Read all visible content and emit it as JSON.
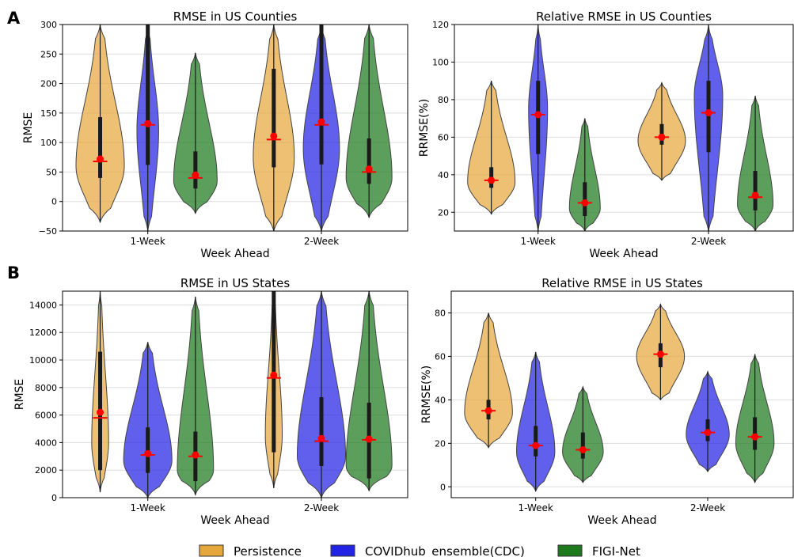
{
  "panel_labels": [
    "A",
    "B"
  ],
  "legend": [
    {
      "label": "Persistence",
      "color": "#e6a73e"
    },
    {
      "label": "COVIDhub_ensemble(CDC)",
      "color": "#2323e6"
    },
    {
      "label": "FIGI-Net",
      "color": "#1d7a1d"
    }
  ],
  "colors": {
    "Persistence": "#e6a73e",
    "COVIDhub_ensemble(CDC)": "#2323e6",
    "FIGI-Net": "#1d7a1d",
    "mean_marker": "#ff0000",
    "box": "#1a1a1a"
  },
  "chart_data": [
    {
      "type": "violin",
      "title": "RMSE in US Counties",
      "xlabel": "Week Ahead",
      "ylabel": "RMSE",
      "categories": [
        "1-Week",
        "2-Week"
      ],
      "ylim": [
        -50,
        300
      ],
      "yticks": [
        -50,
        0,
        50,
        100,
        150,
        200,
        250,
        300
      ],
      "grid": true,
      "series": [
        {
          "name": "Persistence",
          "stats": [
            {
              "min": -35,
              "max": 300,
              "q1": 40,
              "median": 68,
              "q3": 143,
              "mean": 72,
              "mode": 60,
              "width": 1.0
            },
            {
              "min": -50,
              "max": 300,
              "q1": 58,
              "median": 105,
              "q3": 225,
              "mean": 111,
              "mode": 75,
              "width": 0.85
            }
          ]
        },
        {
          "name": "COVIDhub_ensemble(CDC)",
          "stats": [
            {
              "min": -50,
              "max": 300,
              "q1": 62,
              "median": 130,
              "q3": 300,
              "mean": 132,
              "mode": 120,
              "width": 0.45
            },
            {
              "min": -50,
              "max": 300,
              "q1": 63,
              "median": 130,
              "q3": 300,
              "mean": 135,
              "mode": 90,
              "width": 0.75
            }
          ]
        },
        {
          "name": "FIGI-Net",
          "stats": [
            {
              "min": -20,
              "max": 252,
              "q1": 22,
              "median": 40,
              "q3": 85,
              "mean": 45,
              "mode": 35,
              "width": 0.9
            },
            {
              "min": -27,
              "max": 300,
              "q1": 30,
              "median": 50,
              "q3": 107,
              "mean": 55,
              "mode": 40,
              "width": 0.95
            }
          ]
        }
      ]
    },
    {
      "type": "violin",
      "title": "Relative RMSE in US Counties",
      "xlabel": "Week Ahead",
      "ylabel": "RRMSE(%)",
      "categories": [
        "1-Week",
        "2-Week"
      ],
      "ylim": [
        10,
        120
      ],
      "yticks": [
        20,
        40,
        60,
        80,
        100,
        120
      ],
      "grid": true,
      "series": [
        {
          "name": "Persistence",
          "stats": [
            {
              "min": 19,
              "max": 90,
              "q1": 33,
              "median": 37,
              "q3": 44,
              "mean": 37,
              "mode": 36,
              "width": 1.0
            },
            {
              "min": 37,
              "max": 89,
              "q1": 56,
              "median": 60,
              "q3": 67,
              "mean": 60,
              "mode": 58,
              "width": 1.0
            }
          ]
        },
        {
          "name": "COVIDhub_ensemble(CDC)",
          "stats": [
            {
              "min": 10,
              "max": 120,
              "q1": 51,
              "median": 72,
              "q3": 90,
              "mean": 72,
              "mode": 75,
              "width": 0.4
            },
            {
              "min": 10,
              "max": 120,
              "q1": 52,
              "median": 73,
              "q3": 90,
              "mean": 73,
              "mode": 82,
              "width": 0.6
            }
          ]
        },
        {
          "name": "FIGI-Net",
          "stats": [
            {
              "min": 10,
              "max": 70,
              "q1": 18,
              "median": 25,
              "q3": 36,
              "mean": 25,
              "mode": 22,
              "width": 0.65
            },
            {
              "min": 10,
              "max": 82,
              "q1": 21,
              "median": 28,
              "q3": 42,
              "mean": 29,
              "mode": 24,
              "width": 0.75
            }
          ]
        }
      ]
    },
    {
      "type": "violin",
      "title": "RMSE in US States",
      "xlabel": "Week Ahead",
      "ylabel": "RMSE",
      "categories": [
        "1-Week",
        "2-Week"
      ],
      "ylim": [
        0,
        15000
      ],
      "yticks": [
        0,
        2000,
        4000,
        6000,
        8000,
        10000,
        12000,
        14000
      ],
      "grid": true,
      "series": [
        {
          "name": "Persistence",
          "stats": [
            {
              "min": 400,
              "max": 15000,
              "q1": 2000,
              "median": 5800,
              "q3": 10600,
              "mean": 6200,
              "mode": 4000,
              "width": 0.35
            },
            {
              "min": 700,
              "max": 15000,
              "q1": 3300,
              "median": 8700,
              "q3": 15000,
              "mean": 8900,
              "mode": 4500,
              "width": 0.35
            }
          ]
        },
        {
          "name": "COVIDhub_ensemble(CDC)",
          "stats": [
            {
              "min": 0,
              "max": 11300,
              "q1": 1800,
              "median": 3100,
              "q3": 5100,
              "mean": 3200,
              "mode": 2700,
              "width": 1.0
            },
            {
              "min": 0,
              "max": 15000,
              "q1": 2300,
              "median": 4100,
              "q3": 7300,
              "mean": 4300,
              "mode": 3000,
              "width": 1.0
            }
          ]
        },
        {
          "name": "FIGI-Net",
          "stats": [
            {
              "min": 200,
              "max": 14600,
              "q1": 1200,
              "median": 3000,
              "q3": 4800,
              "mean": 3100,
              "mode": 2000,
              "width": 0.75
            },
            {
              "min": 500,
              "max": 15000,
              "q1": 1400,
              "median": 4200,
              "q3": 6900,
              "mean": 4250,
              "mode": 2300,
              "width": 0.95
            }
          ]
        }
      ]
    },
    {
      "type": "violin",
      "title": "Relative RMSE in US States",
      "xlabel": "Week Ahead",
      "ylabel": "RRMSE(%)",
      "categories": [
        "1-Week",
        "2-Week"
      ],
      "ylim": [
        -5,
        90
      ],
      "yticks": [
        0,
        20,
        40,
        60,
        80
      ],
      "grid": true,
      "series": [
        {
          "name": "Persistence",
          "stats": [
            {
              "min": 18,
              "max": 80,
              "q1": 31,
              "median": 35,
              "q3": 40,
              "mean": 35,
              "mode": 34,
              "width": 1.0
            },
            {
              "min": 40,
              "max": 84,
              "q1": 55,
              "median": 61,
              "q3": 66,
              "mean": 61,
              "mode": 60,
              "width": 1.0
            }
          ]
        },
        {
          "name": "COVIDhub_ensemble(CDC)",
          "stats": [
            {
              "min": -2,
              "max": 62,
              "q1": 14,
              "median": 19,
              "q3": 28,
              "mean": 19,
              "mode": 16,
              "width": 0.8
            },
            {
              "min": 7,
              "max": 53,
              "q1": 21,
              "median": 25,
              "q3": 31,
              "mean": 25,
              "mode": 24,
              "width": 0.9
            }
          ]
        },
        {
          "name": "FIGI-Net",
          "stats": [
            {
              "min": 2,
              "max": 46,
              "q1": 13,
              "median": 17,
              "q3": 25,
              "mean": 17,
              "mode": 16,
              "width": 0.85
            },
            {
              "min": 2,
              "max": 61,
              "q1": 17,
              "median": 23,
              "q3": 32,
              "mean": 23,
              "mode": 20,
              "width": 0.8
            }
          ]
        }
      ]
    }
  ]
}
